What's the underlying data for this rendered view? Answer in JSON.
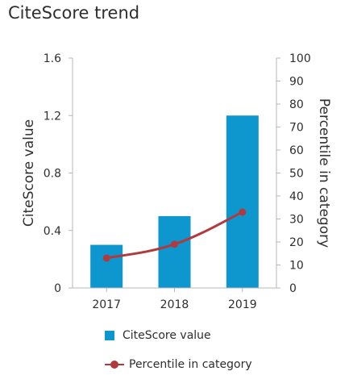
{
  "chart_data": {
    "type": "bar",
    "title": "CiteScore trend",
    "categories": [
      "2017",
      "2018",
      "2019"
    ],
    "series": [
      {
        "name": "CiteScore value",
        "type": "bar",
        "axis": "left",
        "values": [
          0.3,
          0.5,
          1.2
        ],
        "color": "#0e96cf"
      },
      {
        "name": "Percentile in category",
        "type": "line",
        "axis": "right",
        "values": [
          13,
          19,
          33
        ],
        "color": "#b03a3e"
      }
    ],
    "ylabel": "CiteScore value",
    "ylim": [
      0,
      1.6
    ],
    "yticks": [
      "0",
      "0.4",
      "0.8",
      "1.2",
      "1.6"
    ],
    "y2label": "Percentile in category",
    "y2lim": [
      0,
      100
    ],
    "y2ticks": [
      "0",
      "10",
      "20",
      "30",
      "40",
      "50",
      "60",
      "70",
      "80",
      "90",
      "100"
    ],
    "grid": false,
    "legend_position": "bottom"
  }
}
